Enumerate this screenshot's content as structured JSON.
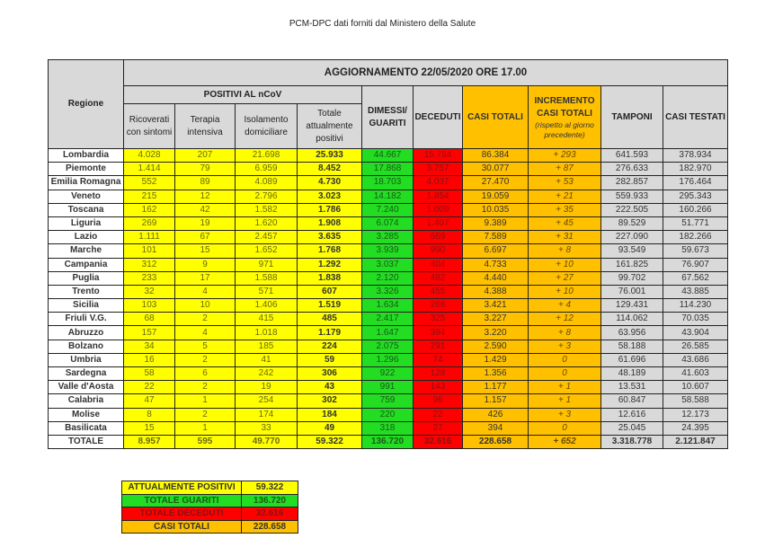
{
  "title": "PCM-DPC dati forniti dal Ministero della Salute",
  "header": {
    "regione": "Regione",
    "aggiornamento": "AGGIORNAMENTO 22/05/2020 ORE 17.00",
    "positivi": "POSITIVI AL nCoV",
    "ricoverati": "Ricoverati con sintomi",
    "terapia": "Terapia intensiva",
    "isolamento": "Isolamento domiciliare",
    "totale_positivi": "Totale attualmente positivi",
    "dimessi": "DIMESSI/ GUARITI",
    "deceduti": "DECEDUTI",
    "casi_totali": "CASI TOTALI",
    "incremento": "INCREMENTO CASI TOTALI",
    "incremento_sub": "(rispetto al giorno precedente)",
    "tamponi": "TAMPONI",
    "casi_testati": "CASI TESTATI"
  },
  "rows": [
    [
      "Lombardia",
      "4.028",
      "207",
      "21.698",
      "25.933",
      "44.667",
      "15.784",
      "86.384",
      "+ 293",
      "641.593",
      "378.934"
    ],
    [
      "Piemonte",
      "1.414",
      "79",
      "6.959",
      "8.452",
      "17.868",
      "3.757",
      "30.077",
      "+ 87",
      "276.633",
      "182.970"
    ],
    [
      "Emilia Romagna",
      "552",
      "89",
      "4.089",
      "4.730",
      "18.703",
      "4.037",
      "27.470",
      "+ 53",
      "282.857",
      "176.464"
    ],
    [
      "Veneto",
      "215",
      "12",
      "2.796",
      "3.023",
      "14.182",
      "1.854",
      "19.059",
      "+ 21",
      "559.933",
      "295.343"
    ],
    [
      "Toscana",
      "162",
      "42",
      "1.582",
      "1.786",
      "7.240",
      "1.009",
      "10.035",
      "+ 35",
      "222.505",
      "160.266"
    ],
    [
      "Liguria",
      "269",
      "19",
      "1.620",
      "1.908",
      "6.074",
      "1.407",
      "9.389",
      "+ 45",
      "89.529",
      "51.771"
    ],
    [
      "Lazio",
      "1.111",
      "67",
      "2.457",
      "3.635",
      "3.285",
      "669",
      "7.589",
      "+ 31",
      "227.090",
      "182.266"
    ],
    [
      "Marche",
      "101",
      "15",
      "1.652",
      "1.768",
      "3.939",
      "990",
      "6.697",
      "+ 8",
      "93.549",
      "59.673"
    ],
    [
      "Campania",
      "312",
      "9",
      "971",
      "1.292",
      "3.037",
      "404",
      "4.733",
      "+ 10",
      "161.825",
      "76.907"
    ],
    [
      "Puglia",
      "233",
      "17",
      "1.588",
      "1.838",
      "2.120",
      "482",
      "4.440",
      "+ 27",
      "99.702",
      "67.562"
    ],
    [
      "Trento",
      "32",
      "4",
      "571",
      "607",
      "3.326",
      "455",
      "4.388",
      "+ 10",
      "76.001",
      "43.885"
    ],
    [
      "Sicilia",
      "103",
      "10",
      "1.406",
      "1.519",
      "1.634",
      "268",
      "3.421",
      "+ 4",
      "129.431",
      "114.230"
    ],
    [
      "Friuli V.G.",
      "68",
      "2",
      "415",
      "485",
      "2.417",
      "325",
      "3.227",
      "+ 12",
      "114.062",
      "70.035"
    ],
    [
      "Abruzzo",
      "157",
      "4",
      "1.018",
      "1.179",
      "1.647",
      "394",
      "3.220",
      "+ 8",
      "63.956",
      "43.904"
    ],
    [
      "Bolzano",
      "34",
      "5",
      "185",
      "224",
      "2.075",
      "291",
      "2.590",
      "+ 3",
      "58.188",
      "26.585"
    ],
    [
      "Umbria",
      "16",
      "2",
      "41",
      "59",
      "1.296",
      "74",
      "1.429",
      "0",
      "61.696",
      "43.686"
    ],
    [
      "Sardegna",
      "58",
      "6",
      "242",
      "306",
      "922",
      "128",
      "1.356",
      "0",
      "48.189",
      "41.603"
    ],
    [
      "Valle d'Aosta",
      "22",
      "2",
      "19",
      "43",
      "991",
      "143",
      "1.177",
      "+ 1",
      "13.531",
      "10.607"
    ],
    [
      "Calabria",
      "47",
      "1",
      "254",
      "302",
      "759",
      "96",
      "1.157",
      "+ 1",
      "60.847",
      "58.588"
    ],
    [
      "Molise",
      "8",
      "2",
      "174",
      "184",
      "220",
      "22",
      "426",
      "+ 3",
      "12.616",
      "12.173"
    ],
    [
      "Basilicata",
      "15",
      "1",
      "33",
      "49",
      "318",
      "27",
      "394",
      "0",
      "25.045",
      "24.395"
    ]
  ],
  "totale": [
    "TOTALE",
    "8.957",
    "595",
    "49.770",
    "59.322",
    "136.720",
    "32.616",
    "228.658",
    "+ 652",
    "3.318.778",
    "2.121.847"
  ],
  "summary": [
    {
      "label": "ATTUALMENTE POSITIVI",
      "value": "59.322",
      "color": "#ffff00"
    },
    {
      "label": "TOTALE GUARITI",
      "value": "136.720",
      "color": "#22dd22"
    },
    {
      "label": "TOTALE DECEDUTI",
      "value": "32.616",
      "color": "#ff0000"
    },
    {
      "label": "CASI TOTALI",
      "value": "228.658",
      "color": "#ffc000"
    }
  ]
}
